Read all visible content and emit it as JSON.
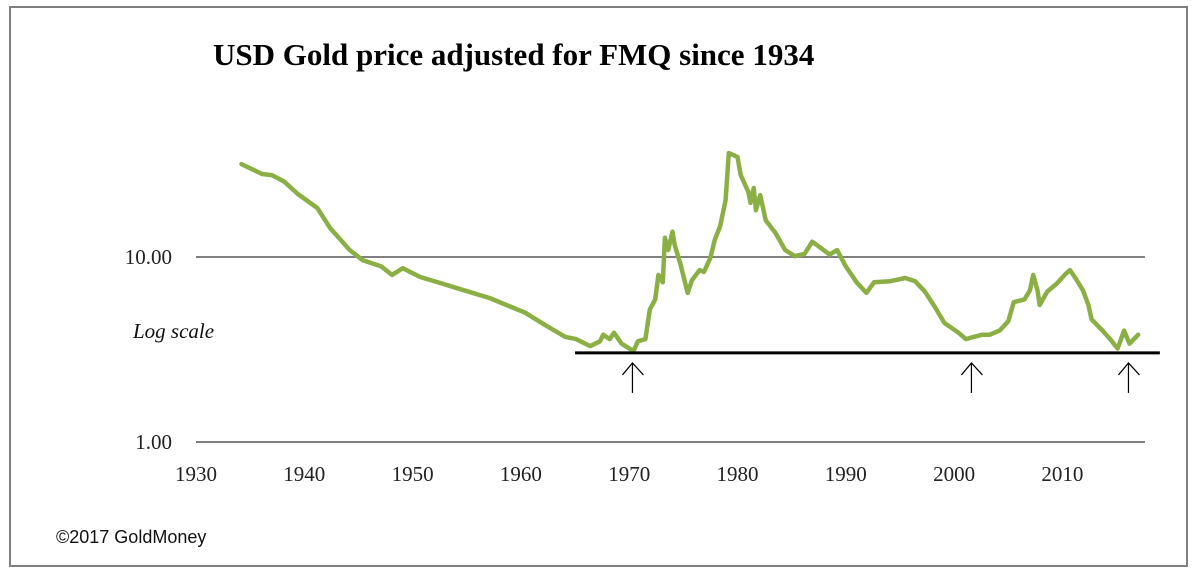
{
  "chart_data": {
    "type": "line",
    "title": "USD Gold price adjusted for FMQ since 1934",
    "xlabel": "",
    "ylabel": "",
    "yscale": "log",
    "ylim": [
      1,
      40
    ],
    "xlim": [
      1930,
      2018
    ],
    "grid": "horizontal",
    "y_ticks": [
      {
        "value": 1,
        "label": "1.00"
      },
      {
        "value": 10,
        "label": "10.00"
      }
    ],
    "x_ticks": [
      {
        "value": 1930,
        "label": "1930"
      },
      {
        "value": 1940,
        "label": "1940"
      },
      {
        "value": 1950,
        "label": "1950"
      },
      {
        "value": 1960,
        "label": "1960"
      },
      {
        "value": 1970,
        "label": "1970"
      },
      {
        "value": 1980,
        "label": "1980"
      },
      {
        "value": 1990,
        "label": "1990"
      },
      {
        "value": 2000,
        "label": "2000"
      },
      {
        "value": 2010,
        "label": "2010"
      }
    ],
    "annotations": {
      "scale_note": "Log scale",
      "support_line": {
        "value": 3.03,
        "from_year": 1965,
        "to_year": 2019,
        "color": "#000000"
      },
      "arrows_at_years": [
        1970.3,
        2001.6,
        2016.1
      ]
    },
    "series": [
      {
        "name": "USD Gold price adjusted for FMQ",
        "color": "#8AB045",
        "x": [
          1934.2,
          1936.1,
          1937.0,
          1938.1,
          1939.4,
          1941.2,
          1942.4,
          1944.2,
          1945.4,
          1947.1,
          1948.1,
          1949.1,
          1950.7,
          1953.0,
          1954.4,
          1957.1,
          1959.0,
          1960.4,
          1962.2,
          1964.1,
          1965.1,
          1966.4,
          1967.3,
          1967.6,
          1968.2,
          1968.6,
          1969.3,
          1970.4,
          1970.8,
          1971.5,
          1971.9,
          1972.4,
          1972.7,
          1973.1,
          1973.3,
          1973.6,
          1974.0,
          1974.2,
          1974.7,
          1975.4,
          1975.8,
          1976.5,
          1976.9,
          1977.5,
          1977.9,
          1978.4,
          1978.9,
          1979.2,
          1979.6,
          1980.0,
          1980.3,
          1981.0,
          1981.2,
          1981.5,
          1981.7,
          1982.1,
          1982.6,
          1983.5,
          1984.4,
          1985.3,
          1986.2,
          1986.9,
          1987.6,
          1988.5,
          1989.2,
          1990.0,
          1991.0,
          1991.9,
          1992.6,
          1994.1,
          1995.5,
          1996.4,
          1997.3,
          1998.2,
          1999.1,
          1999.6,
          2000.4,
          2001.1,
          2001.8,
          2002.6,
          2003.3,
          2004.2,
          2005.0,
          2005.5,
          2006.5,
          2007.0,
          2007.3,
          2007.7,
          2007.9,
          2008.6,
          2009.5,
          2010.3,
          2010.7,
          2011.2,
          2011.9,
          2012.4,
          2012.7,
          2013.7,
          2014.4,
          2015.1,
          2015.7,
          2016.2,
          2017.0
        ],
        "y": [
          31.8,
          28.1,
          27.7,
          25.7,
          21.9,
          18.4,
          14.3,
          10.9,
          9.6,
          8.9,
          8.0,
          8.7,
          7.8,
          7.1,
          6.7,
          6.0,
          5.4,
          5.0,
          4.3,
          3.7,
          3.6,
          3.3,
          3.5,
          3.8,
          3.6,
          3.9,
          3.4,
          3.1,
          3.5,
          3.6,
          5.2,
          5.9,
          8.0,
          7.3,
          12.7,
          10.9,
          13.7,
          11.6,
          9.3,
          6.4,
          7.5,
          8.5,
          8.3,
          9.9,
          12.4,
          14.7,
          20.3,
          36.5,
          35.6,
          34.7,
          27.7,
          22.5,
          19.6,
          23.6,
          17.9,
          21.6,
          15.8,
          13.5,
          10.9,
          10.1,
          10.4,
          12.1,
          11.3,
          10.3,
          10.9,
          8.9,
          7.3,
          6.4,
          7.3,
          7.4,
          7.7,
          7.4,
          6.5,
          5.4,
          4.4,
          4.2,
          3.9,
          3.6,
          3.7,
          3.8,
          3.8,
          4.0,
          4.5,
          5.7,
          5.9,
          6.6,
          8.0,
          6.6,
          5.5,
          6.5,
          7.2,
          8.1,
          8.5,
          7.7,
          6.6,
          5.5,
          4.6,
          4.0,
          3.6,
          3.2,
          4.0,
          3.4,
          3.8
        ]
      }
    ]
  },
  "footer": {
    "copyright": "©2017 GoldMoney"
  },
  "colors": {
    "series": "#8AB045",
    "grid": "#808080",
    "border": "#7f7f7f",
    "support": "#000000"
  }
}
